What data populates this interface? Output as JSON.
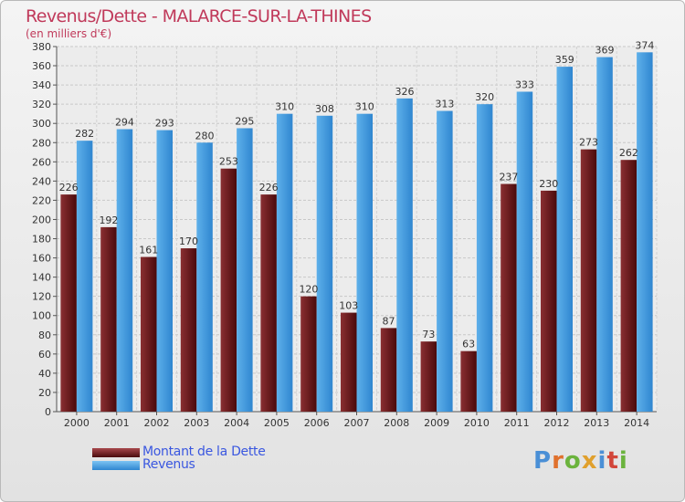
{
  "header": {
    "title": "Revenus/Dette - MALARCE-SUR-LA-THINES",
    "subtitle": "(en milliers d'€)"
  },
  "colors": {
    "debt_light": "#8a2f32",
    "debt_dark": "#4a0a0c",
    "revenue_light": "#5eb0ea",
    "revenue_dark": "#2f86d0",
    "title": "#c0395a",
    "legend_text": "#3a57e0"
  },
  "legend": {
    "items": [
      {
        "label": "Montant de la Dette",
        "color": "#6b1a1e"
      },
      {
        "label": "Revenus",
        "color": "#4aa3e6"
      }
    ]
  },
  "logo": {
    "text": "Proxiti"
  },
  "chart_data": {
    "type": "bar",
    "categories": [
      "2000",
      "2001",
      "2002",
      "2003",
      "2004",
      "2005",
      "2006",
      "2007",
      "2008",
      "2009",
      "2010",
      "2011",
      "2012",
      "2013",
      "2014"
    ],
    "series": [
      {
        "name": "Montant de la Dette",
        "values": [
          226,
          192,
          161,
          170,
          253,
          226,
          120,
          103,
          87,
          73,
          63,
          237,
          230,
          273,
          262
        ]
      },
      {
        "name": "Revenus",
        "values": [
          282,
          294,
          293,
          280,
          295,
          310,
          308,
          310,
          326,
          313,
          320,
          333,
          359,
          369,
          374
        ]
      }
    ],
    "title": "Revenus/Dette - MALARCE-SUR-LA-THINES",
    "subtitle": "(en milliers d'€)",
    "ylim": [
      0,
      380
    ],
    "ytick_step": 20,
    "grid": true,
    "legend_position": "bottom-left"
  }
}
